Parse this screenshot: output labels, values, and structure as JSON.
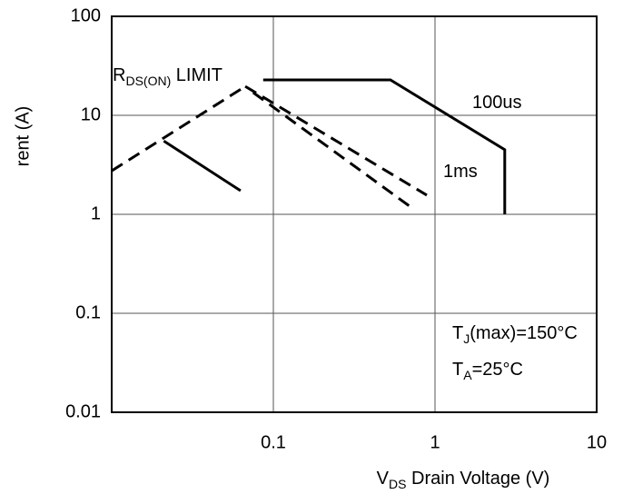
{
  "chart_data": {
    "type": "line",
    "xlog": true,
    "ylog": true,
    "grid": true,
    "ylabel": "rent (A)",
    "xlabel": {
      "main": "V",
      "sub": "DS",
      "rest": " Drain Voltage (V)"
    },
    "xlim": [
      0.01,
      10
    ],
    "xticks": [
      0.1,
      1,
      10
    ],
    "ylim": [
      0.01,
      100
    ],
    "yticks": [
      0.01,
      0.1,
      1,
      10,
      100
    ],
    "series": [
      {
        "color": "#000000",
        "dashed": true,
        "x": [
          0.01,
          0.067
        ],
        "values": [
          2.75,
          19.6
        ]
      },
      {
        "color": "#000000",
        "dashed": false,
        "x": [
          0.0865,
          0.53,
          2.7,
          2.7
        ],
        "values": [
          22.8,
          22.8,
          4.5,
          1
        ]
      },
      {
        "color": "#000000",
        "dashed": true,
        "x": [
          0.067,
          0.89
        ],
        "values": [
          19.6,
          1.56
        ]
      },
      {
        "color": "#000000",
        "dashed": true,
        "x": [
          0.075,
          0.7
        ],
        "values": [
          17,
          1.2
        ]
      },
      {
        "color": "#000000",
        "dashed": false,
        "x": [
          0.021,
          0.0627
        ],
        "values": [
          5.5,
          1.73
        ]
      }
    ],
    "annotations": [
      {
        "main": "R",
        "sub": "DS(ON)",
        "rest": " LIMIT"
      },
      {
        "main": "100us"
      },
      {
        "main": "1ms"
      },
      {
        "main": "T",
        "sub": "J",
        "rest": "(max)=150°C"
      },
      {
        "main": "T",
        "sub": "A",
        "rest": "=25°C"
      }
    ]
  }
}
